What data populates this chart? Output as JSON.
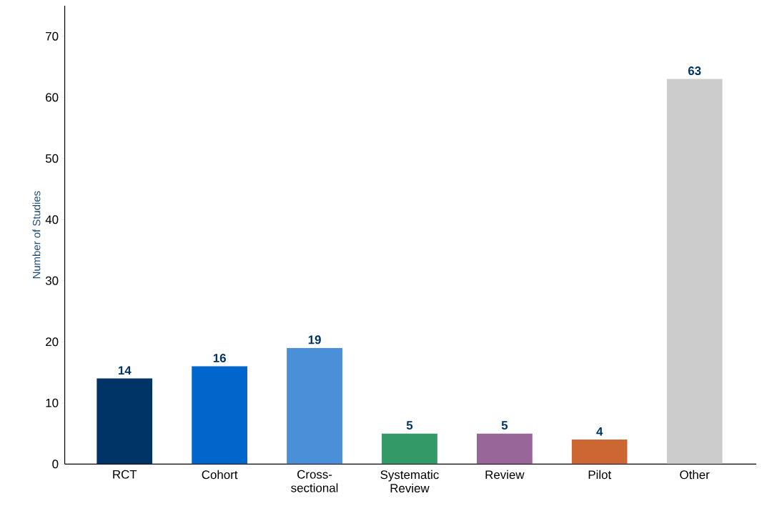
{
  "chart_data": {
    "type": "bar",
    "ylabel": "Number of Studies",
    "categories": [
      "RCT",
      "Cohort",
      "Cross-sectional",
      "Systematic Review",
      "Review",
      "Pilot",
      "Other"
    ],
    "values": [
      14,
      16,
      19,
      5,
      5,
      4,
      63
    ],
    "colors": [
      "#003366",
      "#0066cc",
      "#4a90d9",
      "#339966",
      "#996699",
      "#cc6633",
      "#cccccc"
    ],
    "ylim": [
      0,
      75
    ],
    "yticks": [
      0,
      10,
      20,
      30,
      40,
      50,
      60,
      70
    ],
    "data_labels": true
  }
}
